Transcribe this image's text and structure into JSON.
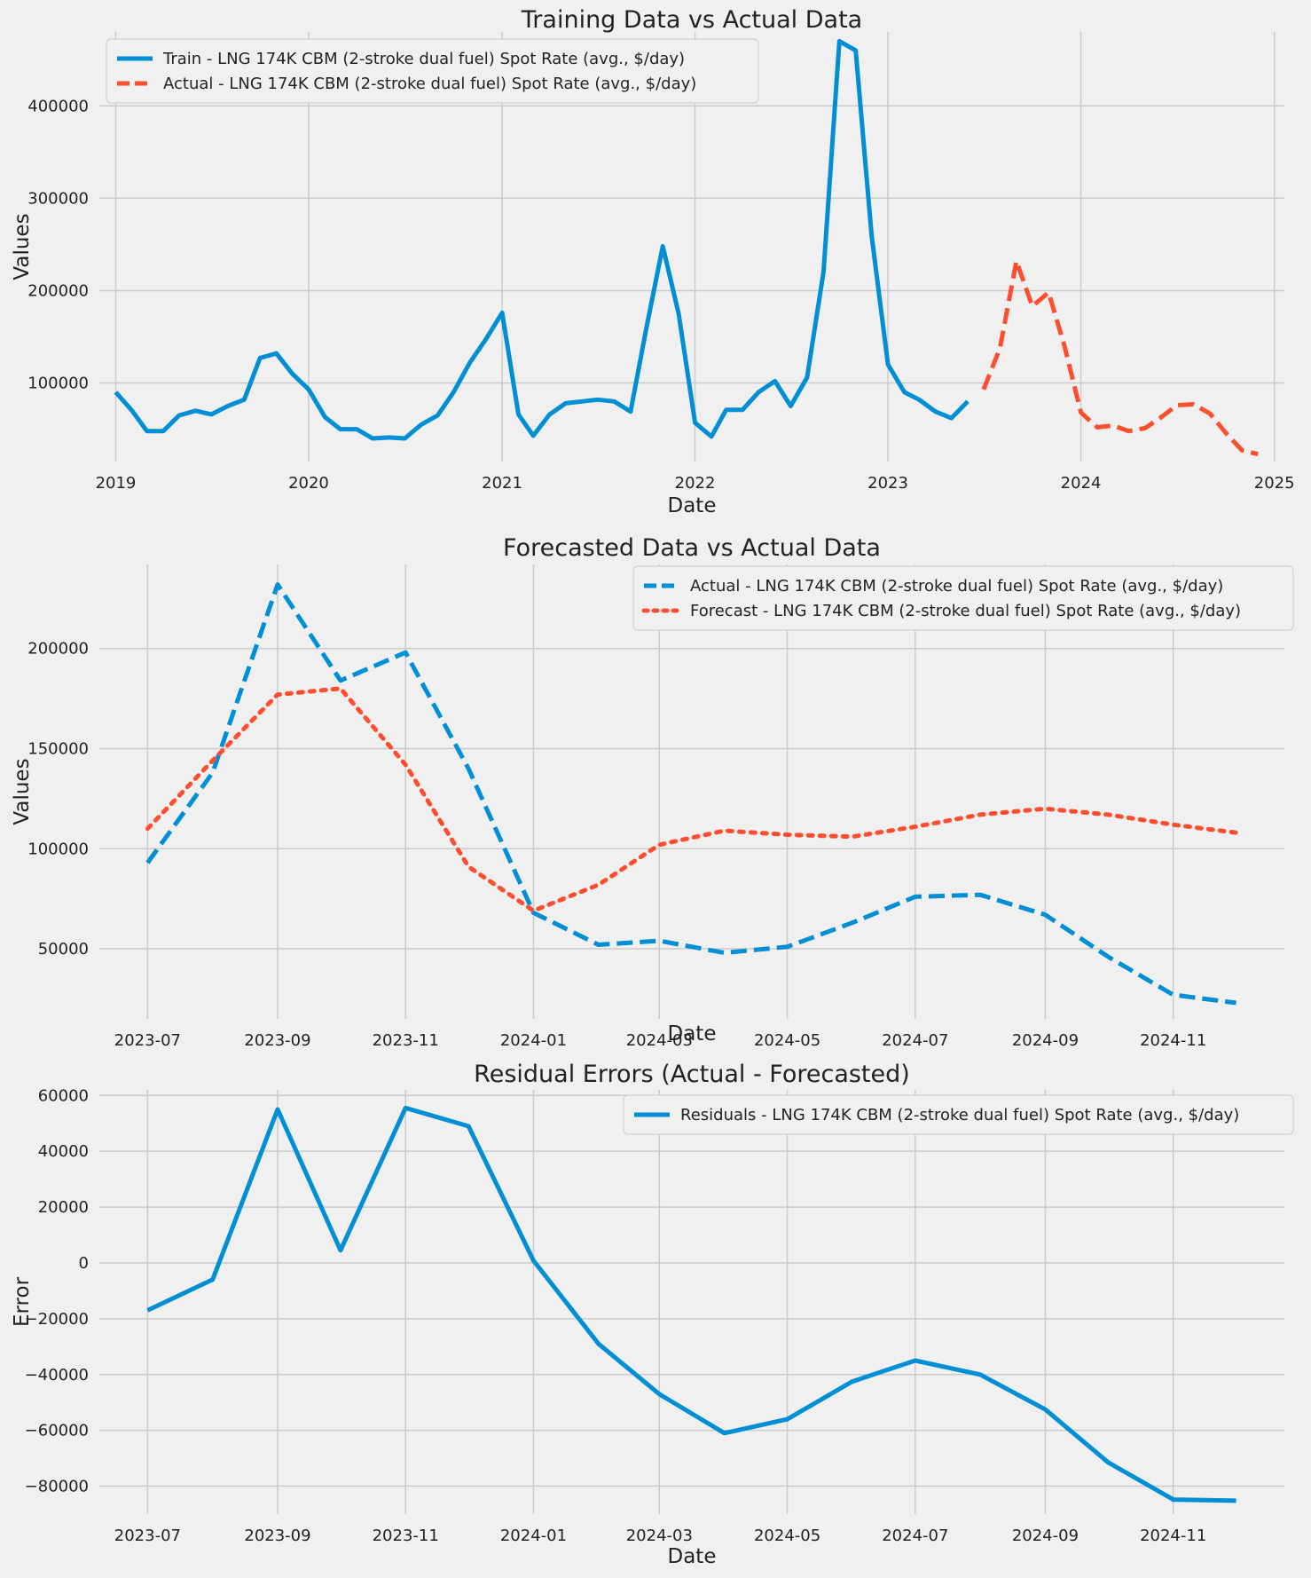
{
  "chart_data": [
    {
      "type": "line",
      "title": "Training Data vs Actual Data",
      "xlabel": "Date",
      "ylabel": "Values",
      "x_axis_kind": "date",
      "xlim": [
        "2018-12-01",
        "2025-01-20"
      ],
      "ylim": [
        15000,
        480000
      ],
      "x_ticks": [
        "2019-01-01",
        "2020-01-01",
        "2021-01-01",
        "2022-01-01",
        "2023-01-01",
        "2024-01-01",
        "2025-01-01"
      ],
      "x_tick_labels": [
        "2019",
        "2020",
        "2021",
        "2022",
        "2023",
        "2024",
        "2025"
      ],
      "y_ticks": [
        100000,
        200000,
        300000,
        400000
      ],
      "y_tick_labels": [
        "100000",
        "200000",
        "300000",
        "400000"
      ],
      "grid": true,
      "legend_position": "top-left",
      "series": [
        {
          "name": "Train - LNG 174K CBM (2-stroke dual fuel) Spot Rate (avg., $/day)",
          "color": "#008fd5",
          "style": "solid",
          "x": [
            "2019-01-01",
            "2019-02-01",
            "2019-03-01",
            "2019-04-01",
            "2019-05-01",
            "2019-06-01",
            "2019-07-01",
            "2019-08-01",
            "2019-09-01",
            "2019-10-01",
            "2019-11-01",
            "2019-12-01",
            "2020-01-01",
            "2020-02-01",
            "2020-03-01",
            "2020-04-01",
            "2020-05-01",
            "2020-06-01",
            "2020-07-01",
            "2020-08-01",
            "2020-09-01",
            "2020-10-01",
            "2020-11-01",
            "2020-12-01",
            "2021-01-01",
            "2021-02-01",
            "2021-03-01",
            "2021-04-01",
            "2021-05-01",
            "2021-06-01",
            "2021-07-01",
            "2021-08-01",
            "2021-09-01",
            "2021-10-01",
            "2021-11-01",
            "2021-12-01",
            "2022-01-01",
            "2022-02-01",
            "2022-03-01",
            "2022-04-01",
            "2022-05-01",
            "2022-06-01",
            "2022-07-01",
            "2022-08-01",
            "2022-09-01",
            "2022-10-01",
            "2022-11-01",
            "2022-12-01",
            "2023-01-01",
            "2023-02-01",
            "2023-03-01",
            "2023-04-01",
            "2023-05-01",
            "2023-06-01"
          ],
          "y": [
            90000,
            70000,
            48000,
            48000,
            65000,
            70000,
            66000,
            75000,
            82000,
            127000,
            132000,
            110000,
            93000,
            63000,
            50000,
            50000,
            40000,
            41000,
            40000,
            55000,
            65000,
            90000,
            122000,
            147000,
            176000,
            66000,
            43000,
            66000,
            78000,
            80000,
            82000,
            80000,
            69000,
            160000,
            248000,
            175000,
            57000,
            42000,
            71000,
            71000,
            90000,
            102000,
            75000,
            106000,
            220000,
            470000,
            460000,
            260000,
            120000,
            90000,
            82000,
            69000,
            62000,
            80000
          ]
        },
        {
          "name": "Actual - LNG 174K CBM (2-stroke dual fuel) Spot Rate (avg., $/day)",
          "color": "#fc4f30",
          "style": "dashed",
          "x": [
            "2023-07-01",
            "2023-08-01",
            "2023-09-01",
            "2023-10-01",
            "2023-11-01",
            "2023-12-01",
            "2024-01-01",
            "2024-02-01",
            "2024-03-01",
            "2024-04-01",
            "2024-05-01",
            "2024-06-01",
            "2024-07-01",
            "2024-08-01",
            "2024-09-01",
            "2024-10-01",
            "2024-11-01",
            "2024-12-01"
          ],
          "y": [
            93000,
            138000,
            232000,
            183000,
            198000,
            140000,
            68000,
            52000,
            54000,
            48000,
            51000,
            63000,
            76000,
            77000,
            67000,
            46000,
            27000,
            23000
          ]
        }
      ]
    },
    {
      "type": "line",
      "title": "Forecasted Data vs Actual Data",
      "xlabel": "Date",
      "ylabel": "Values",
      "x_axis_kind": "date",
      "xlim": [
        "2023-06-08",
        "2024-12-24"
      ],
      "ylim": [
        15000,
        242000
      ],
      "x_ticks": [
        "2023-07-01",
        "2023-09-01",
        "2023-11-01",
        "2024-01-01",
        "2024-03-01",
        "2024-05-01",
        "2024-07-01",
        "2024-09-01",
        "2024-11-01"
      ],
      "x_tick_labels": [
        "2023-07",
        "2023-09",
        "2023-11",
        "2024-01",
        "2024-03",
        "2024-05",
        "2024-07",
        "2024-09",
        "2024-11"
      ],
      "y_ticks": [
        50000,
        100000,
        150000,
        200000
      ],
      "y_tick_labels": [
        "50000",
        "100000",
        "150000",
        "200000"
      ],
      "grid": true,
      "legend_position": "top-right",
      "series": [
        {
          "name": "Actual - LNG 174K CBM (2-stroke dual fuel) Spot Rate (avg., $/day)",
          "color": "#008fd5",
          "style": "dashed",
          "x": [
            "2023-07-01",
            "2023-08-01",
            "2023-09-01",
            "2023-10-01",
            "2023-11-01",
            "2023-12-01",
            "2024-01-01",
            "2024-02-01",
            "2024-03-01",
            "2024-04-01",
            "2024-05-01",
            "2024-06-01",
            "2024-07-01",
            "2024-08-01",
            "2024-09-01",
            "2024-10-01",
            "2024-11-01",
            "2024-12-01"
          ],
          "y": [
            93000,
            138000,
            232000,
            184000,
            198000,
            140000,
            68000,
            52000,
            54000,
            48000,
            51000,
            63000,
            76000,
            77000,
            67000,
            46000,
            27000,
            23000
          ]
        },
        {
          "name": "Forecast - LNG 174K CBM (2-stroke dual fuel) Spot Rate (avg., $/day)",
          "color": "#fc4f30",
          "style": "dotted",
          "x": [
            "2023-07-01",
            "2023-08-01",
            "2023-09-01",
            "2023-10-01",
            "2023-11-01",
            "2023-12-01",
            "2024-01-01",
            "2024-02-01",
            "2024-03-01",
            "2024-04-01",
            "2024-05-01",
            "2024-06-01",
            "2024-07-01",
            "2024-08-01",
            "2024-09-01",
            "2024-10-01",
            "2024-11-01",
            "2024-12-01"
          ],
          "y": [
            110000,
            144000,
            177000,
            180000,
            142000,
            91000,
            69000,
            82000,
            102000,
            109000,
            107000,
            106000,
            111000,
            117000,
            120000,
            117000,
            112000,
            108000
          ]
        }
      ]
    },
    {
      "type": "line",
      "title": "Residual Errors (Actual - Forecasted)",
      "xlabel": "Date",
      "ylabel": "Error",
      "x_axis_kind": "date",
      "xlim": [
        "2023-06-08",
        "2024-12-24"
      ],
      "ylim": [
        -90000,
        62000
      ],
      "x_ticks": [
        "2023-07-01",
        "2023-09-01",
        "2023-11-01",
        "2024-01-01",
        "2024-03-01",
        "2024-05-01",
        "2024-07-01",
        "2024-09-01",
        "2024-11-01"
      ],
      "x_tick_labels": [
        "2023-07",
        "2023-09",
        "2023-11",
        "2024-01",
        "2024-03",
        "2024-05",
        "2024-07",
        "2024-09",
        "2024-11"
      ],
      "y_ticks": [
        -80000,
        -60000,
        -40000,
        -20000,
        0,
        20000,
        40000,
        60000
      ],
      "y_tick_labels": [
        "−80000",
        "−60000",
        "−40000",
        "−20000",
        "0",
        "20000",
        "40000",
        "60000"
      ],
      "grid": true,
      "legend_position": "top-right",
      "series": [
        {
          "name": "Residuals - LNG 174K CBM (2-stroke dual fuel) Spot Rate (avg., $/day)",
          "color": "#008fd5",
          "style": "solid",
          "x": [
            "2023-07-01",
            "2023-08-01",
            "2023-09-01",
            "2023-10-01",
            "2023-11-01",
            "2023-12-01",
            "2024-01-01",
            "2024-02-01",
            "2024-03-01",
            "2024-04-01",
            "2024-05-01",
            "2024-06-01",
            "2024-07-01",
            "2024-08-01",
            "2024-09-01",
            "2024-10-01",
            "2024-11-01",
            "2024-12-01"
          ],
          "y": [
            -17000,
            -6000,
            55000,
            4500,
            55500,
            49000,
            800,
            -29000,
            -47000,
            -61000,
            -56000,
            -42500,
            -35000,
            -40000,
            -52500,
            -71500,
            -84800,
            -85200
          ]
        }
      ]
    }
  ]
}
